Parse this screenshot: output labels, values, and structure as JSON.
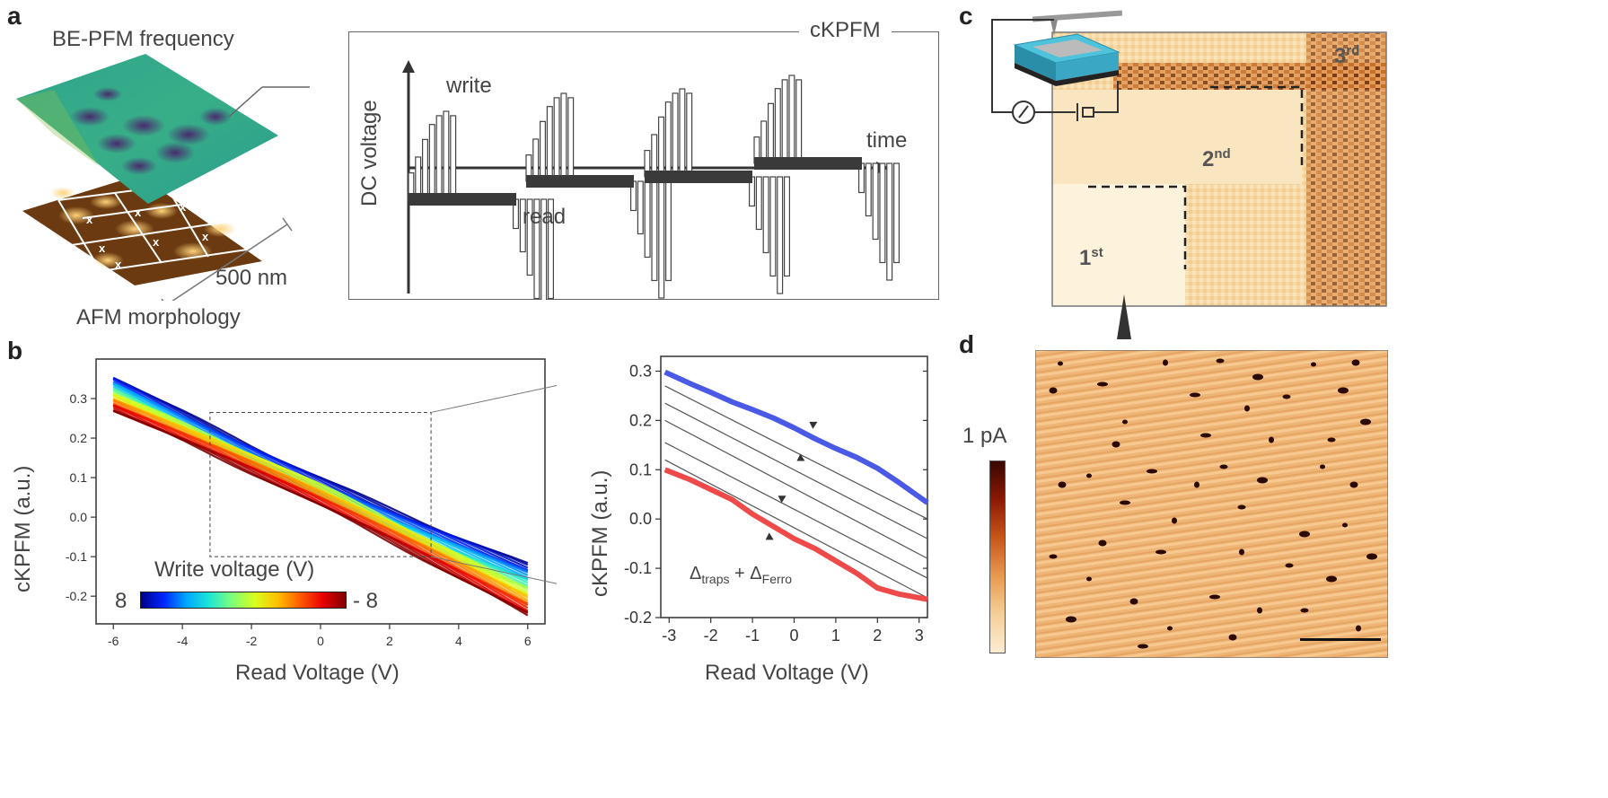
{
  "panels": {
    "a": {
      "label": "a",
      "top_layer_title": "BE-PFM frequency",
      "bottom_layer_title": "AFM morphology",
      "scale_label": "500 nm",
      "diagram": {
        "title": "cKPFM",
        "y_axis_label": "DC voltage",
        "x_axis_label": "time",
        "write_label": "write",
        "read_label": "read",
        "read_levels": [
          -0.35,
          -0.15,
          -0.1,
          0.05
        ],
        "pulse_amplitudes": [
          [
            0.2,
            0.3,
            0.48,
            0.68,
            0.82,
            0.95,
            1.0,
            0.3,
            0.48,
            0.68,
            0.82,
            0.95,
            1.0
          ],
          [
            0.2,
            0.3,
            0.48,
            0.68,
            0.82,
            0.95,
            1.0,
            0.3,
            0.48,
            0.68,
            0.82,
            0.95,
            1.0
          ]
        ]
      }
    },
    "b": {
      "label": "b",
      "legend_title": "Write voltage (V)",
      "colorbar_left": "8",
      "colorbar_right": "- 8",
      "main_chart": {
        "type": "line",
        "xlabel": "Read Voltage (V)",
        "ylabel": "cKPFM (a.u.)",
        "xlim": [
          -6.5,
          6.5
        ],
        "ylim": [
          -0.27,
          0.4
        ],
        "xticks": [
          "-6",
          "-4",
          "-2",
          "0",
          "2",
          "4",
          "6"
        ],
        "yticks": [
          "0.3",
          "0.2",
          "0.1",
          "0.0",
          "-0.1",
          "-0.2"
        ],
        "series_count": 40,
        "write_voltage_range": [
          8,
          -8
        ],
        "start_values": [
          0.355,
          0.27
        ],
        "end_values": [
          -0.12,
          -0.25
        ]
      },
      "inset_chart": {
        "type": "line",
        "xlabel": "Read Voltage (V)",
        "ylabel": "cKPFM (a.u.)",
        "xlim": [
          -3.2,
          3.2
        ],
        "ylim": [
          -0.2,
          0.33
        ],
        "xticks": [
          "-3",
          "-2",
          "-1",
          "0",
          "1",
          "2",
          "3"
        ],
        "yticks": [
          "0.3",
          "0.2",
          "0.1",
          "0.0",
          "-0.1",
          "-0.2"
        ],
        "blue_series": {
          "x": [
            -3.1,
            -2.5,
            -2.0,
            -1.5,
            -1.0,
            -0.5,
            0.0,
            0.5,
            1.0,
            1.5,
            2.0,
            2.5,
            3.2
          ],
          "y": [
            0.298,
            0.275,
            0.257,
            0.238,
            0.222,
            0.205,
            0.185,
            0.163,
            0.143,
            0.125,
            0.103,
            0.075,
            0.033
          ]
        },
        "red_series": {
          "x": [
            -3.1,
            -2.5,
            -2.0,
            -1.5,
            -1.0,
            -0.5,
            0.0,
            0.5,
            1.0,
            1.5,
            2.0,
            2.5,
            3.2
          ],
          "y": [
            0.1,
            0.08,
            0.06,
            0.04,
            0.01,
            -0.015,
            -0.04,
            -0.06,
            -0.085,
            -0.11,
            -0.14,
            -0.152,
            -0.163
          ]
        },
        "gray_lines": [
          {
            "start": [
              -3.1,
              0.27
            ],
            "end": [
              3.2,
              0.0
            ]
          },
          {
            "start": [
              -3.1,
              0.235
            ],
            "end": [
              3.2,
              -0.04
            ]
          },
          {
            "start": [
              -3.1,
              0.2
            ],
            "end": [
              3.2,
              -0.08
            ]
          },
          {
            "start": [
              -3.1,
              0.155
            ],
            "end": [
              3.2,
              -0.12
            ]
          },
          {
            "start": [
              -3.1,
              0.12
            ],
            "end": [
              3.2,
              -0.16
            ]
          }
        ],
        "annotation": {
          "delta_symbol": "Δ",
          "sub1": "traps",
          "plus": " + ",
          "sub2": "Ferro"
        }
      }
    },
    "c": {
      "label": "c",
      "regions": [
        {
          "base": "1",
          "sup": "st"
        },
        {
          "base": "2",
          "sup": "nd"
        },
        {
          "base": "3",
          "sup": "rd"
        }
      ]
    },
    "d": {
      "label": "d",
      "colorbar_label": "1 pA"
    }
  },
  "colors": {
    "blue": "#4a5ae6",
    "red": "#ef4a4a",
    "axis": "#333333",
    "gray_line": "#555555",
    "blackbar": "#3a3a3a"
  }
}
